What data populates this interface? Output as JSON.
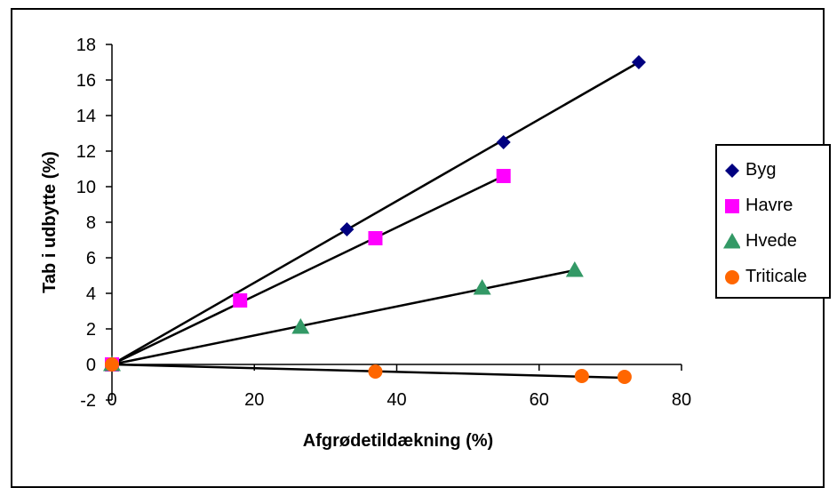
{
  "chart_data": {
    "type": "scatter",
    "title": "",
    "xlabel": "Afgrødetildækning (%)",
    "ylabel": "Tab i udbytte (%)",
    "xlim": [
      0,
      80
    ],
    "ylim": [
      -2,
      18
    ],
    "xticks": [
      0,
      20,
      40,
      60,
      80
    ],
    "yticks": [
      -2,
      0,
      2,
      4,
      6,
      8,
      10,
      12,
      14,
      16,
      18
    ],
    "grid": false,
    "legend_position": "right",
    "series": [
      {
        "name": "Byg",
        "color": "#000080",
        "marker": "diamond",
        "points": [
          [
            0,
            0
          ],
          [
            33,
            7.6
          ],
          [
            55,
            12.5
          ],
          [
            74,
            17
          ]
        ],
        "trendline": [
          [
            0,
            0
          ],
          [
            74,
            17
          ]
        ]
      },
      {
        "name": "Havre",
        "color": "#FF00FF",
        "marker": "square",
        "points": [
          [
            0,
            0
          ],
          [
            18,
            3.6
          ],
          [
            37,
            7.1
          ],
          [
            55,
            10.6
          ]
        ],
        "trendline": [
          [
            0,
            0
          ],
          [
            55,
            10.6
          ]
        ]
      },
      {
        "name": "Hvede",
        "color": "#339966",
        "marker": "triangle",
        "points": [
          [
            0,
            0
          ],
          [
            26.5,
            2.1
          ],
          [
            52,
            4.3
          ],
          [
            65,
            5.3
          ]
        ],
        "trendline": [
          [
            0,
            0
          ],
          [
            65,
            5.3
          ]
        ]
      },
      {
        "name": "Triticale",
        "color": "#FF6600",
        "marker": "circle",
        "points": [
          [
            0,
            0
          ],
          [
            37,
            -0.4
          ],
          [
            66,
            -0.65
          ],
          [
            72,
            -0.7
          ]
        ],
        "trendline": [
          [
            0,
            0
          ],
          [
            72,
            -0.75
          ]
        ]
      }
    ]
  }
}
